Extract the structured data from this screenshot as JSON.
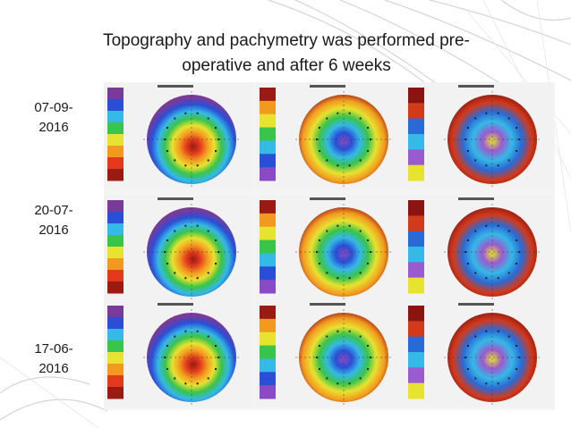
{
  "slide": {
    "title_line1": "Topography and pachymetry was performed pre-",
    "title_line2": "operative and after 6 weeks"
  },
  "rows": [
    {
      "date_line1": "07-09-",
      "date_line2": "2016"
    },
    {
      "date_line1": "20-07-",
      "date_line2": "2016"
    },
    {
      "date_line1": "17-06-",
      "date_line2": "2016"
    }
  ],
  "columns": [
    {
      "map": "axial-curvature-map",
      "palette": [
        "#7a3a9a",
        "#2a4fd6",
        "#35b9e6",
        "#39c44a",
        "#e8e230",
        "#f29a20",
        "#e33a1c",
        "#9b1a12"
      ]
    },
    {
      "map": "elevation-map",
      "palette": [
        "#9a1a14",
        "#f29a20",
        "#e8e230",
        "#39c44a",
        "#35b9e6",
        "#2a4fd6",
        "#8a4ac6"
      ]
    },
    {
      "map": "pachymetry-map",
      "palette": [
        "#8a1510",
        "#d23a1c",
        "#2a6ad6",
        "#35b9e6",
        "#9a5ad0",
        "#e8e230"
      ]
    }
  ]
}
